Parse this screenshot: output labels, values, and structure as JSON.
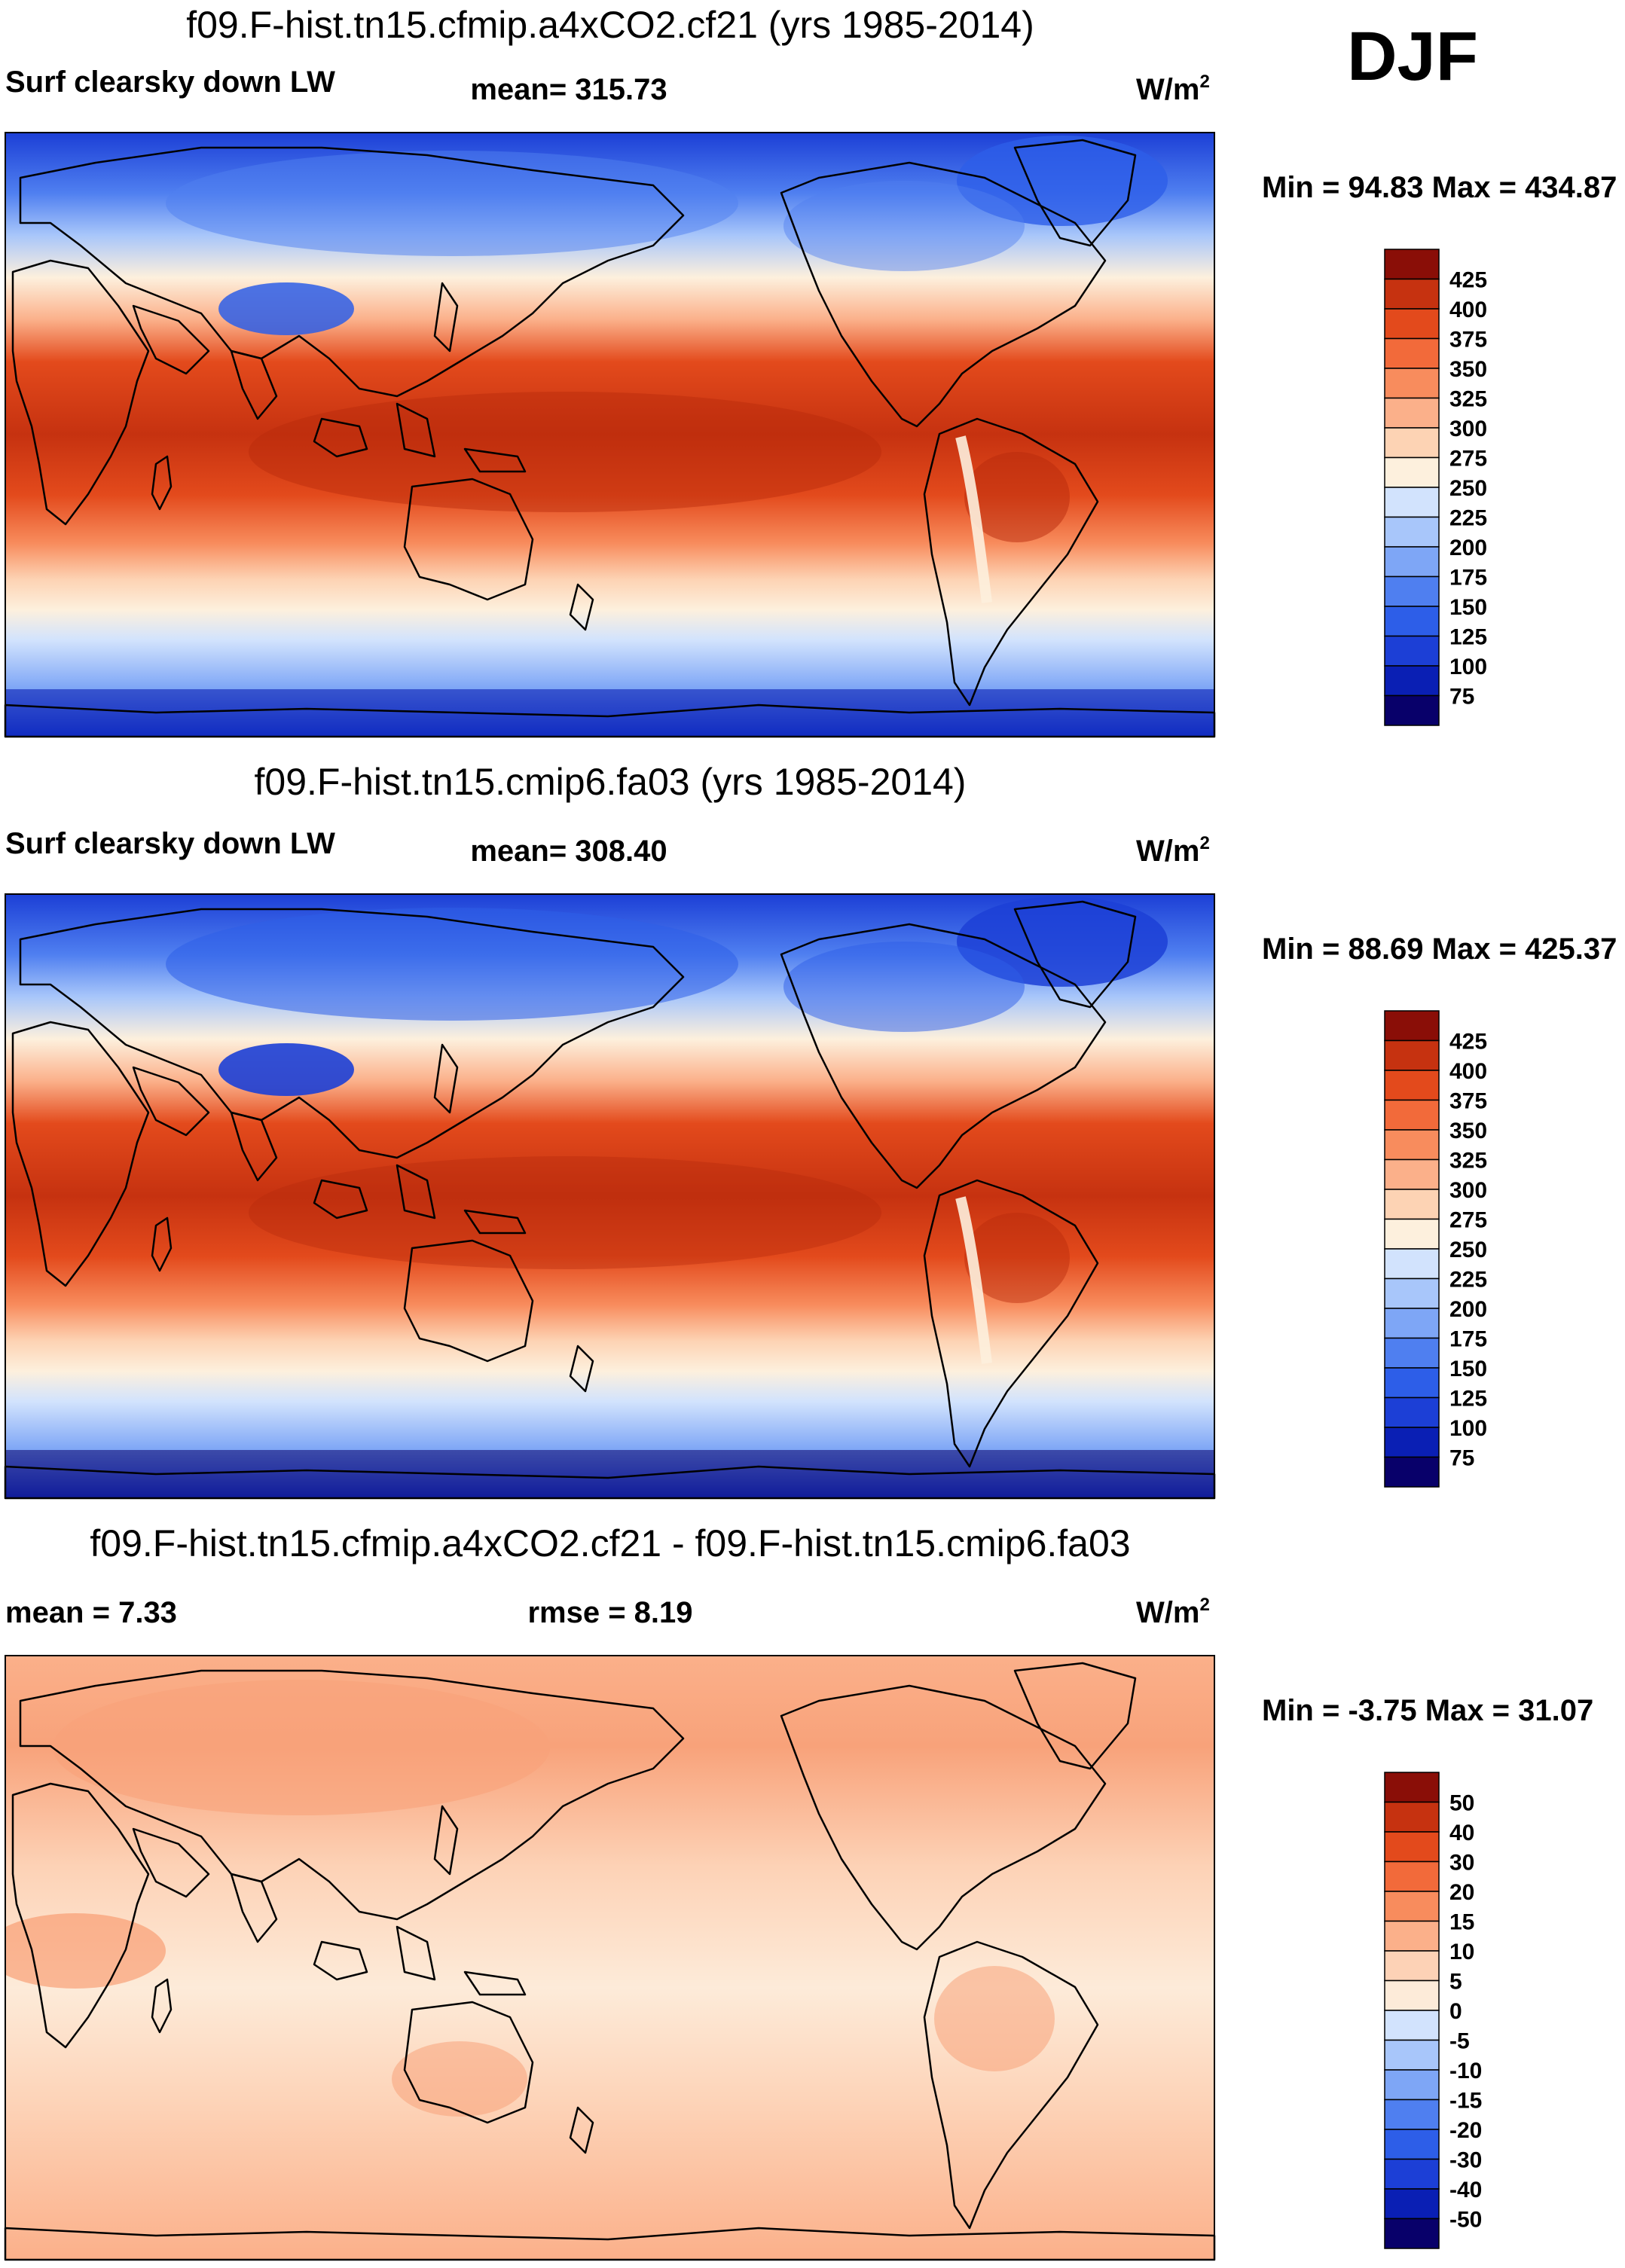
{
  "season": "DJF",
  "colors": {
    "coast": "#000000",
    "frame": "#000000",
    "abs_scale": [
      "#08006a",
      "#0a1fb4",
      "#1c3fd6",
      "#2d5ee8",
      "#4f7ff0",
      "#7ea6f6",
      "#a8c6fa",
      "#d2e3fd",
      "#fdf0dd",
      "#fdd3b4",
      "#fbb08a",
      "#f88c5d",
      "#f26a3a",
      "#e34a1c",
      "#c63210",
      "#8a0e07"
    ],
    "diff_scale": [
      "#08006a",
      "#0a1fb4",
      "#1c3fd6",
      "#2d5ee8",
      "#4f7ff0",
      "#7ea6f6",
      "#a8c6fa",
      "#d2e3fd",
      "#fdebd9",
      "#fdd2b6",
      "#fbb08a",
      "#f88c5d",
      "#f26a3a",
      "#e34a1c",
      "#c63210",
      "#8a0e07"
    ]
  },
  "chart_data": [
    {
      "type": "heatmap",
      "title": "f09.F-hist.tn15.cfmip.a4xCO2.cf21 (yrs 1985-2014)",
      "left_label": "Surf clearsky down LW",
      "center_label": "mean= 315.73",
      "units": "W/m",
      "units_sup": "2",
      "min": 94.83,
      "max": 434.87,
      "minmax_text": "Min =  94.83 Max = 434.87",
      "colorbar_ticks": [
        "425",
        "400",
        "375",
        "350",
        "325",
        "300",
        "275",
        "250",
        "225",
        "200",
        "175",
        "150",
        "125",
        "100",
        "75"
      ],
      "xlim": [
        -180,
        180
      ],
      "ylim": [
        -90,
        90
      ],
      "projection": "cylindrical equidistant, centered 160E"
    },
    {
      "type": "heatmap",
      "title": "f09.F-hist.tn15.cmip6.fa03 (yrs 1985-2014)",
      "left_label": "Surf clearsky down LW",
      "center_label": "mean= 308.40",
      "units": "W/m",
      "units_sup": "2",
      "min": 88.69,
      "max": 425.37,
      "minmax_text": "Min =  88.69 Max = 425.37",
      "colorbar_ticks": [
        "425",
        "400",
        "375",
        "350",
        "325",
        "300",
        "275",
        "250",
        "225",
        "200",
        "175",
        "150",
        "125",
        "100",
        "75"
      ],
      "xlim": [
        -180,
        180
      ],
      "ylim": [
        -90,
        90
      ],
      "projection": "cylindrical equidistant, centered 160E"
    },
    {
      "type": "heatmap",
      "title": "f09.F-hist.tn15.cfmip.a4xCO2.cf21 - f09.F-hist.tn15.cmip6.fa03",
      "left_label": "mean =   7.33",
      "center_label": "rmse =   8.19",
      "units": "W/m",
      "units_sup": "2",
      "min": -3.75,
      "max": 31.07,
      "minmax_text": "Min =  -3.75 Max =  31.07",
      "colorbar_ticks": [
        "50",
        "40",
        "30",
        "20",
        "15",
        "10",
        "5",
        "0",
        "-5",
        "-10",
        "-15",
        "-20",
        "-30",
        "-40",
        "-50"
      ],
      "xlim": [
        -180,
        180
      ],
      "ylim": [
        -90,
        90
      ],
      "projection": "cylindrical equidistant, centered 160E"
    }
  ]
}
